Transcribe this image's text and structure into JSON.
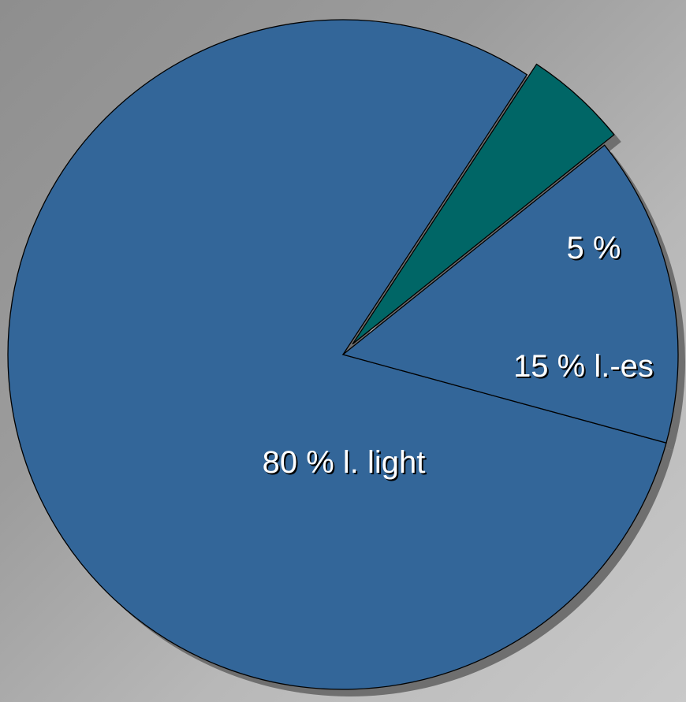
{
  "chart_data": {
    "type": "pie",
    "slices": [
      {
        "label": "5 %",
        "value": 5,
        "color": "#006666",
        "exploded": true
      },
      {
        "label": "15 % l.-es",
        "value": 15,
        "color": "#336699",
        "exploded": false
      },
      {
        "label": "80 % l. light",
        "value": 80,
        "color": "#336699",
        "exploded": false
      }
    ],
    "title": "",
    "legend": "none"
  }
}
